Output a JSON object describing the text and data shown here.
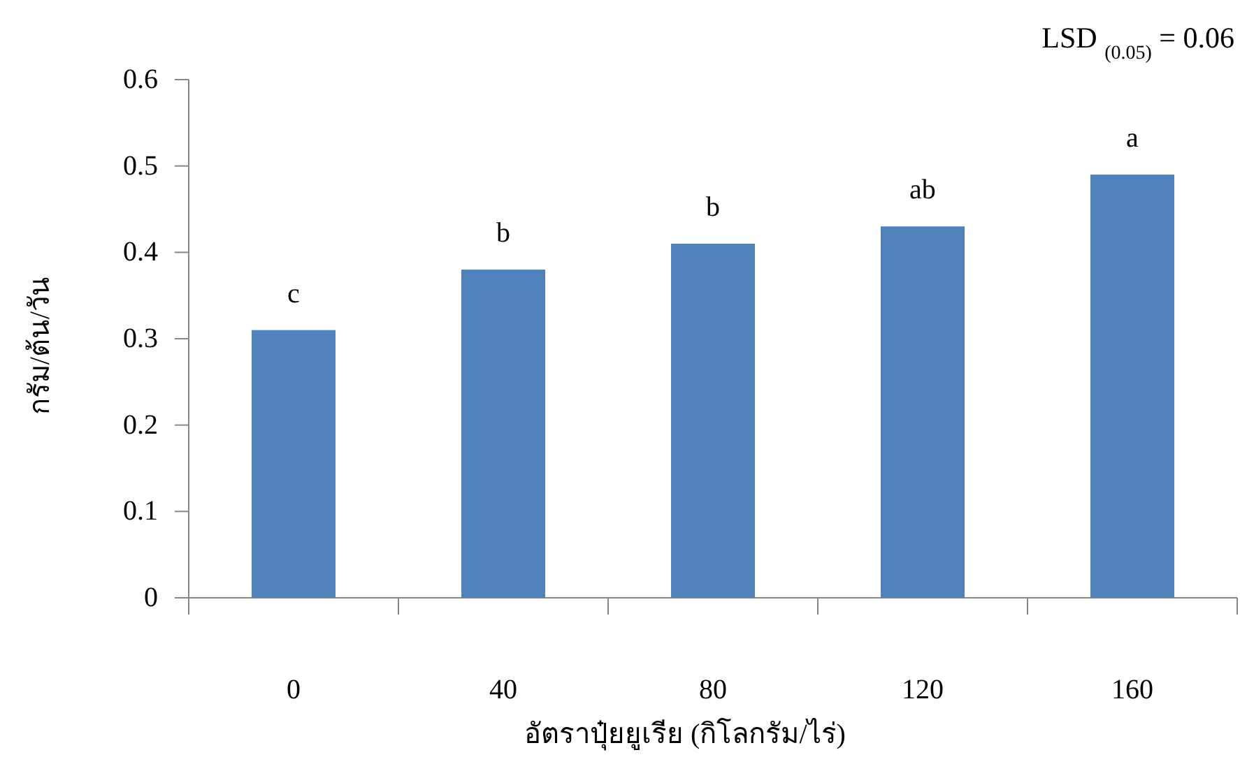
{
  "chart_data": {
    "type": "bar",
    "xlabel": "อัตราปุ๋ยยูเรีย (กิโลกรัม/ไร่)",
    "ylabel": "กรัม/ต้น/วัน",
    "categories": [
      "0",
      "40",
      "80",
      "120",
      "160"
    ],
    "values": [
      0.31,
      0.38,
      0.41,
      0.43,
      0.49
    ],
    "value_labels": [
      "c",
      "b",
      "b",
      "ab",
      "a"
    ],
    "color": "#4f81bd",
    "ylim": [
      0,
      0.6
    ],
    "yticks": [
      0,
      0.1,
      0.2,
      0.3,
      0.4,
      0.5,
      0.6
    ],
    "annotations": [
      "LSD $_{(0.05)}$ = 0.06"
    ]
  }
}
